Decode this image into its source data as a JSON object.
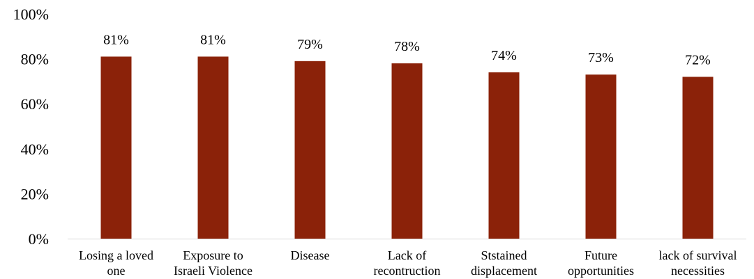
{
  "chart_data": {
    "type": "bar",
    "categories": [
      [
        "Losing a loved",
        "one"
      ],
      [
        "Exposure to",
        "Israeli Violence"
      ],
      [
        "Disease"
      ],
      [
        "Lack of",
        "recontruction"
      ],
      [
        "Ststained",
        "displacement"
      ],
      [
        "Future",
        "opportunities"
      ],
      [
        "lack of survival",
        "necessities"
      ]
    ],
    "values": [
      81,
      81,
      79,
      78,
      74,
      73,
      72
    ],
    "data_labels": [
      "81%",
      "81%",
      "79%",
      "78%",
      "74%",
      "73%",
      "72%"
    ],
    "y_ticks": [
      "0%",
      "20%",
      "40%",
      "60%",
      "80%",
      "100%"
    ],
    "ylim": [
      0,
      100
    ],
    "grid": false,
    "legend": "none",
    "bar_color": "#8B2209"
  }
}
